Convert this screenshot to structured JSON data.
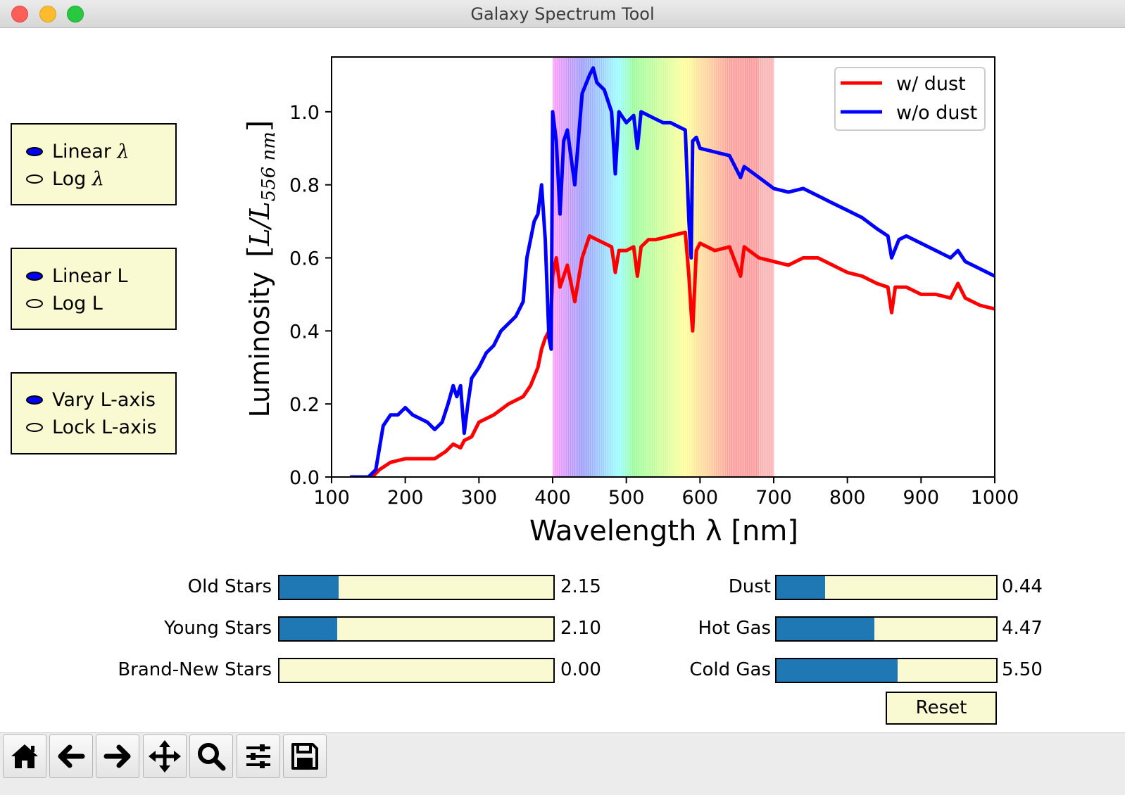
{
  "window": {
    "title": "Galaxy Spectrum Tool"
  },
  "radio_groups": [
    {
      "options": [
        {
          "label": "Linear ",
          "sym": "λ",
          "selected": true
        },
        {
          "label": "Log ",
          "sym": "λ",
          "selected": false
        }
      ]
    },
    {
      "options": [
        {
          "label": "Linear L",
          "sym": "",
          "selected": true
        },
        {
          "label": "Log L",
          "sym": "",
          "selected": false
        }
      ]
    },
    {
      "options": [
        {
          "label": "Vary L-axis",
          "sym": "",
          "selected": true
        },
        {
          "label": "Lock L-axis",
          "sym": "",
          "selected": false
        }
      ]
    }
  ],
  "chart_data": {
    "type": "line",
    "xlabel": "Wavelength λ [nm]",
    "ylabel": "Luminosity",
    "ylabel_math": {
      "open": "[",
      "L": "L",
      "slash": "/",
      "sub": "556 nm",
      "close": "]"
    },
    "xlim": [
      100,
      1000
    ],
    "ylim": [
      0,
      1.15
    ],
    "x_ticks": [
      100,
      200,
      300,
      400,
      500,
      600,
      700,
      800,
      900,
      1000
    ],
    "y_ticks": [
      0.0,
      0.2,
      0.4,
      0.6,
      0.8,
      1.0
    ],
    "visible_band_nm": [
      400,
      700
    ],
    "legend": {
      "position": "top-right"
    },
    "series": [
      {
        "name": "w/ dust",
        "color": "#ff0000",
        "x": [
          155,
          165,
          180,
          200,
          220,
          240,
          255,
          265,
          275,
          280,
          290,
          300,
          320,
          340,
          360,
          370,
          380,
          385,
          390,
          395,
          398,
          400,
          405,
          410,
          420,
          430,
          440,
          450,
          460,
          470,
          480,
          485,
          490,
          500,
          510,
          515,
          520,
          530,
          540,
          560,
          580,
          585,
          588,
          590,
          595,
          600,
          620,
          640,
          655,
          660,
          680,
          700,
          720,
          740,
          760,
          780,
          800,
          820,
          840,
          855,
          860,
          865,
          880,
          900,
          920,
          940,
          950,
          960,
          980,
          1000
        ],
        "y": [
          0.0,
          0.02,
          0.04,
          0.05,
          0.05,
          0.05,
          0.07,
          0.09,
          0.08,
          0.1,
          0.11,
          0.15,
          0.17,
          0.2,
          0.22,
          0.25,
          0.3,
          0.35,
          0.38,
          0.4,
          0.45,
          0.55,
          0.6,
          0.52,
          0.58,
          0.48,
          0.6,
          0.66,
          0.65,
          0.64,
          0.63,
          0.56,
          0.62,
          0.62,
          0.63,
          0.55,
          0.63,
          0.65,
          0.65,
          0.66,
          0.67,
          0.55,
          0.45,
          0.4,
          0.62,
          0.64,
          0.62,
          0.63,
          0.55,
          0.63,
          0.6,
          0.59,
          0.58,
          0.6,
          0.6,
          0.58,
          0.56,
          0.55,
          0.53,
          0.52,
          0.45,
          0.52,
          0.52,
          0.5,
          0.5,
          0.49,
          0.53,
          0.49,
          0.47,
          0.46
        ]
      },
      {
        "name": "w/o dust",
        "color": "#0000ff",
        "x": [
          125,
          150,
          160,
          170,
          180,
          190,
          200,
          210,
          220,
          230,
          240,
          250,
          258,
          265,
          270,
          275,
          280,
          285,
          290,
          300,
          310,
          320,
          330,
          340,
          350,
          360,
          365,
          370,
          375,
          380,
          385,
          390,
          395,
          398,
          400,
          405,
          410,
          415,
          420,
          430,
          440,
          450,
          455,
          460,
          470,
          480,
          485,
          490,
          500,
          510,
          515,
          520,
          530,
          540,
          550,
          560,
          570,
          580,
          585,
          588,
          590,
          595,
          600,
          620,
          640,
          655,
          660,
          680,
          700,
          720,
          740,
          760,
          780,
          800,
          820,
          840,
          855,
          860,
          870,
          880,
          900,
          920,
          930,
          940,
          950,
          960,
          980,
          1000
        ],
        "y": [
          0.0,
          0.0,
          0.02,
          0.14,
          0.17,
          0.17,
          0.19,
          0.17,
          0.16,
          0.15,
          0.13,
          0.15,
          0.2,
          0.25,
          0.22,
          0.25,
          0.12,
          0.2,
          0.27,
          0.3,
          0.34,
          0.36,
          0.4,
          0.42,
          0.44,
          0.48,
          0.6,
          0.65,
          0.7,
          0.72,
          0.8,
          0.65,
          0.38,
          0.35,
          1.0,
          0.92,
          0.72,
          0.92,
          0.95,
          0.8,
          1.05,
          1.1,
          1.12,
          1.08,
          1.06,
          1.0,
          0.83,
          1.0,
          0.97,
          0.99,
          0.9,
          1.0,
          0.99,
          0.98,
          0.97,
          0.97,
          0.96,
          0.95,
          0.7,
          0.6,
          0.92,
          0.93,
          0.9,
          0.89,
          0.88,
          0.82,
          0.85,
          0.82,
          0.79,
          0.78,
          0.79,
          0.77,
          0.75,
          0.73,
          0.71,
          0.68,
          0.66,
          0.6,
          0.65,
          0.66,
          0.64,
          0.62,
          0.61,
          0.6,
          0.62,
          0.59,
          0.57,
          0.55
        ]
      }
    ]
  },
  "sliders": [
    {
      "label": "Old Stars",
      "value_text": "2.15",
      "fill_fraction": 0.215
    },
    {
      "label": "Young Stars",
      "value_text": "2.10",
      "fill_fraction": 0.21
    },
    {
      "label": "Brand-New Stars",
      "value_text": "0.00",
      "fill_fraction": 0.0
    },
    {
      "label": "Dust",
      "value_text": "0.44",
      "fill_fraction": 0.22
    },
    {
      "label": "Hot Gas",
      "value_text": "4.47",
      "fill_fraction": 0.447
    },
    {
      "label": "Cold Gas",
      "value_text": "5.50",
      "fill_fraction": 0.55
    }
  ],
  "reset_label": "Reset",
  "toolbar": [
    {
      "icon": "home-icon"
    },
    {
      "icon": "back-arrow-icon"
    },
    {
      "icon": "forward-arrow-icon"
    },
    {
      "icon": "pan-icon"
    },
    {
      "icon": "zoom-icon"
    },
    {
      "icon": "configure-subplots-icon"
    },
    {
      "icon": "save-icon"
    }
  ],
  "colors": {
    "slider_fill": "#1f77b4",
    "widget_bg": "#fafad2"
  }
}
